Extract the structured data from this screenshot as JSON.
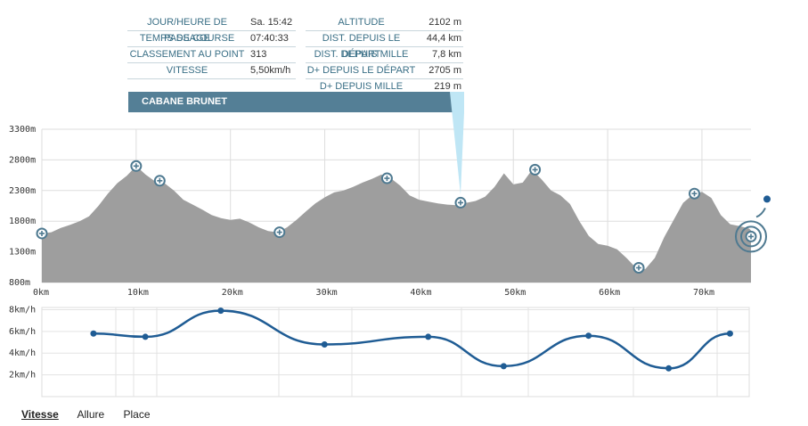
{
  "passage_info": {
    "left_rows": [
      {
        "label": "JOUR/HEURE DE PASSAGE",
        "value": "Sa. 15:42"
      },
      {
        "label": "TEMPS DE COURSE",
        "value": "07:40:33"
      },
      {
        "label": "CLASSEMENT AU POINT",
        "value": "313"
      },
      {
        "label": "VITESSE",
        "value": "5,50km/h"
      }
    ],
    "right_rows": [
      {
        "label": "ALTITUDE",
        "value": "2102 m"
      },
      {
        "label": "DIST. DEPUIS LE DÉPART",
        "value": "44,4 km"
      },
      {
        "label": "DIST. DEPUIS MILLE",
        "value": "7,8 km"
      },
      {
        "label": "D+ DEPUIS LE DÉPART",
        "value": "2705 m"
      },
      {
        "label": "D+ DEPUIS MILLE",
        "value": "219 m"
      }
    ],
    "checkpoint_name": "CABANE BRUNET"
  },
  "colors": {
    "profile_fill": "#9e9e9e",
    "speed_line": "#1f5c94",
    "banner": "#547f96",
    "pointer": "#bfe6f5",
    "label_text": "#3a6f86"
  },
  "chart_data": [
    {
      "type": "area",
      "x_ticks": [
        "0km",
        "10km",
        "20km",
        "30km",
        "40km",
        "50km",
        "60km",
        "70km"
      ],
      "y_ticks": [
        "800m",
        "1300m",
        "1800m",
        "2300m",
        "2800m",
        "3300m"
      ],
      "xlim": [
        0,
        75.2
      ],
      "ylim": [
        800,
        3300
      ],
      "profile": [
        [
          0,
          1600
        ],
        [
          1,
          1620
        ],
        [
          2,
          1690
        ],
        [
          3,
          1740
        ],
        [
          4,
          1800
        ],
        [
          5,
          1880
        ],
        [
          6,
          2050
        ],
        [
          7,
          2250
        ],
        [
          8,
          2420
        ],
        [
          9,
          2540
        ],
        [
          10,
          2700
        ],
        [
          11,
          2560
        ],
        [
          12,
          2450
        ],
        [
          13,
          2420
        ],
        [
          14,
          2300
        ],
        [
          15,
          2150
        ],
        [
          16,
          2070
        ],
        [
          17,
          1990
        ],
        [
          18,
          1900
        ],
        [
          19,
          1850
        ],
        [
          20,
          1820
        ],
        [
          21,
          1840
        ],
        [
          22,
          1780
        ],
        [
          23,
          1700
        ],
        [
          24,
          1640
        ],
        [
          25,
          1620
        ],
        [
          26,
          1700
        ],
        [
          27,
          1820
        ],
        [
          28,
          1960
        ],
        [
          29,
          2090
        ],
        [
          30,
          2190
        ],
        [
          31,
          2270
        ],
        [
          32,
          2300
        ],
        [
          33,
          2360
        ],
        [
          34,
          2430
        ],
        [
          35,
          2490
        ],
        [
          36,
          2560
        ],
        [
          37,
          2500
        ],
        [
          38,
          2380
        ],
        [
          39,
          2220
        ],
        [
          40,
          2150
        ],
        [
          41,
          2120
        ],
        [
          42,
          2090
        ],
        [
          43,
          2070
        ],
        [
          44,
          2060
        ],
        [
          45,
          2100
        ],
        [
          46,
          2130
        ],
        [
          47,
          2200
        ],
        [
          48,
          2360
        ],
        [
          49,
          2580
        ],
        [
          50,
          2400
        ],
        [
          51,
          2430
        ],
        [
          52,
          2640
        ],
        [
          53,
          2480
        ],
        [
          54,
          2300
        ],
        [
          55,
          2220
        ],
        [
          56,
          2080
        ],
        [
          57,
          1800
        ],
        [
          58,
          1560
        ],
        [
          59,
          1430
        ],
        [
          60,
          1400
        ],
        [
          61,
          1340
        ],
        [
          62,
          1200
        ],
        [
          63,
          1040
        ],
        [
          64,
          1020
        ],
        [
          65,
          1200
        ],
        [
          66,
          1540
        ],
        [
          67,
          1820
        ],
        [
          68,
          2100
        ],
        [
          69,
          2230
        ],
        [
          70,
          2280
        ],
        [
          71,
          2180
        ],
        [
          72,
          1900
        ],
        [
          73,
          1750
        ],
        [
          74,
          1720
        ],
        [
          75,
          1680
        ],
        [
          75.2,
          1650
        ]
      ],
      "checkpoints": [
        {
          "x": 0,
          "y": 1600
        },
        {
          "x": 10,
          "y": 2700
        },
        {
          "x": 12.5,
          "y": 2460
        },
        {
          "x": 25.2,
          "y": 1620
        },
        {
          "x": 36.6,
          "y": 2500
        },
        {
          "x": 44.4,
          "y": 2102
        },
        {
          "x": 52.3,
          "y": 2640
        },
        {
          "x": 63.3,
          "y": 1040
        },
        {
          "x": 69.2,
          "y": 2250
        },
        {
          "x": 75.2,
          "y": 1550
        }
      ]
    },
    {
      "type": "line",
      "y_ticks": [
        "8km/h",
        "6km/h",
        "4km/h",
        "2km/h"
      ],
      "ylim": [
        0,
        8.2
      ],
      "x": [
        5,
        10.5,
        18.5,
        29.5,
        40.5,
        48.5,
        57.5,
        66,
        72.5
      ],
      "values": [
        5.8,
        5.5,
        7.9,
        4.8,
        5.5,
        2.8,
        5.6,
        2.6,
        5.8
      ]
    }
  ],
  "tabs": {
    "vitesse": "Vitesse",
    "allure": "Allure",
    "place": "Place"
  }
}
